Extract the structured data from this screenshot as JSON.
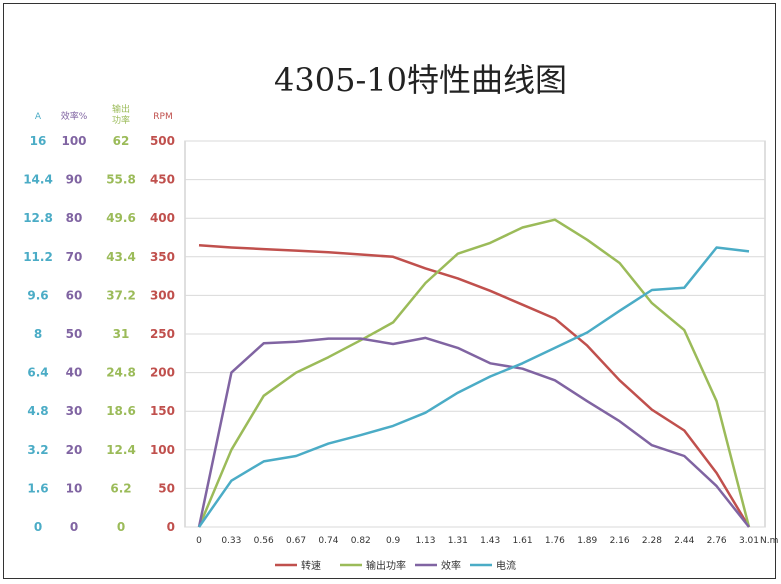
{
  "chart_data": {
    "type": "line",
    "title": "4305-10特性曲线图",
    "x_unit": "N.m",
    "x": [
      "0",
      "0.33",
      "0.56",
      "0.67",
      "0.74",
      "0.82",
      "0.9",
      "1.13",
      "1.31",
      "1.43",
      "1.61",
      "1.76",
      "1.89",
      "2.16",
      "2.28",
      "2.44",
      "2.76",
      "3.01"
    ],
    "y_axes": [
      {
        "header": "A",
        "color": "#4bacc6",
        "ticks": [
          "16",
          "14.4",
          "12.8",
          "11.2",
          "9.6",
          "8",
          "6.4",
          "4.8",
          "3.2",
          "1.6",
          "0"
        ]
      },
      {
        "header": "效率%",
        "color": "#8064a2",
        "ticks": [
          "100",
          "90",
          "80",
          "70",
          "60",
          "50",
          "40",
          "30",
          "20",
          "10",
          "0"
        ]
      },
      {
        "header": "输出功率",
        "color": "#9bbb59",
        "ticks": [
          "62",
          "55.8",
          "49.6",
          "43.4",
          "37.2",
          "31",
          "24.8",
          "18.6",
          "12.4",
          "6.2",
          "0"
        ]
      },
      {
        "header": "RPM",
        "color": "#c0504d",
        "ticks": [
          "500",
          "450",
          "400",
          "350",
          "300",
          "250",
          "200",
          "150",
          "100",
          "50",
          "0"
        ]
      }
    ],
    "ylim": [
      0,
      500
    ],
    "grid": true,
    "legend_position": "bottom",
    "series": [
      {
        "name": "转速",
        "color": "#c0504d",
        "values": [
          365,
          362,
          360,
          358,
          356,
          353,
          350,
          335,
          322,
          306,
          288,
          270,
          235,
          190,
          152,
          125,
          70,
          0
        ]
      },
      {
        "name": "输出功率",
        "color": "#9bbb59",
        "values": [
          0,
          100,
          170,
          200,
          220,
          242,
          265,
          316,
          354,
          368,
          388,
          398,
          372,
          342,
          290,
          255,
          163,
          0
        ]
      },
      {
        "name": "效率",
        "color": "#8064a2",
        "values": [
          0,
          200,
          238,
          240,
          244,
          244,
          237,
          245,
          232,
          212,
          205,
          190,
          163,
          137,
          106,
          92,
          53,
          0
        ]
      },
      {
        "name": "电流",
        "color": "#4bacc6",
        "values": [
          0,
          60,
          85,
          92,
          108,
          119,
          131,
          148,
          174,
          195,
          212,
          232,
          252,
          280,
          307,
          310,
          362,
          357
        ]
      }
    ]
  }
}
